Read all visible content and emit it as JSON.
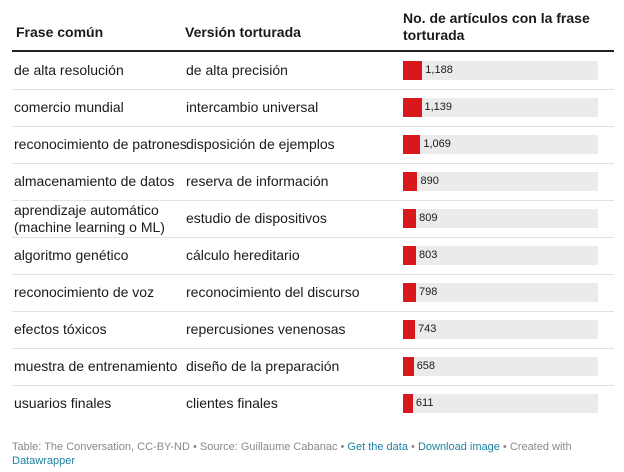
{
  "headers": {
    "common": "Frase común",
    "tortured": "Versión torturada",
    "count": "No. de artículos con la frase torturada"
  },
  "chart_data": {
    "type": "table",
    "columns": [
      "Frase común",
      "Versión torturada",
      "No. de artículos con la frase torturada"
    ],
    "bar_color": "#d7191c",
    "bar_background": "#ebebeb",
    "xlim": [
      0,
      12000
    ],
    "rows": [
      {
        "common": "de alta resolución",
        "tortured": "de alta precisión",
        "value": 1188,
        "label": "1,188"
      },
      {
        "common": "comercio mundial",
        "tortured": "intercambio universal",
        "value": 1139,
        "label": "1,139"
      },
      {
        "common": "reconocimiento de patrones",
        "tortured": "disposición de ejemplos",
        "value": 1069,
        "label": "1,069"
      },
      {
        "common": "almacenamiento de datos",
        "tortured": "reserva de información",
        "value": 890,
        "label": "890"
      },
      {
        "common": "aprendizaje automático\n(machine learning o ML)",
        "tortured": "estudio de dispositivos",
        "value": 809,
        "label": "809"
      },
      {
        "common": "algoritmo genético",
        "tortured": "cálculo hereditario",
        "value": 803,
        "label": "803"
      },
      {
        "common": "reconocimiento de voz",
        "tortured": "reconocimiento del discurso",
        "value": 798,
        "label": "798"
      },
      {
        "common": "efectos tóxicos",
        "tortured": "repercusiones venenosas",
        "value": 743,
        "label": "743"
      },
      {
        "common": "muestra de entrenamiento",
        "tortured": "diseño de la preparación",
        "value": 658,
        "label": "658"
      },
      {
        "common": "usuarios finales",
        "tortured": "clientes finales",
        "value": 611,
        "label": "611"
      }
    ]
  },
  "footer": {
    "source": "Table: The Conversation, CC-BY-ND • Source: Guillaume Cabanac • ",
    "get_data": "Get the data",
    "sep1": " • ",
    "download": "Download image",
    "sep2": " • Created with ",
    "datawrapper": "Datawrapper"
  }
}
